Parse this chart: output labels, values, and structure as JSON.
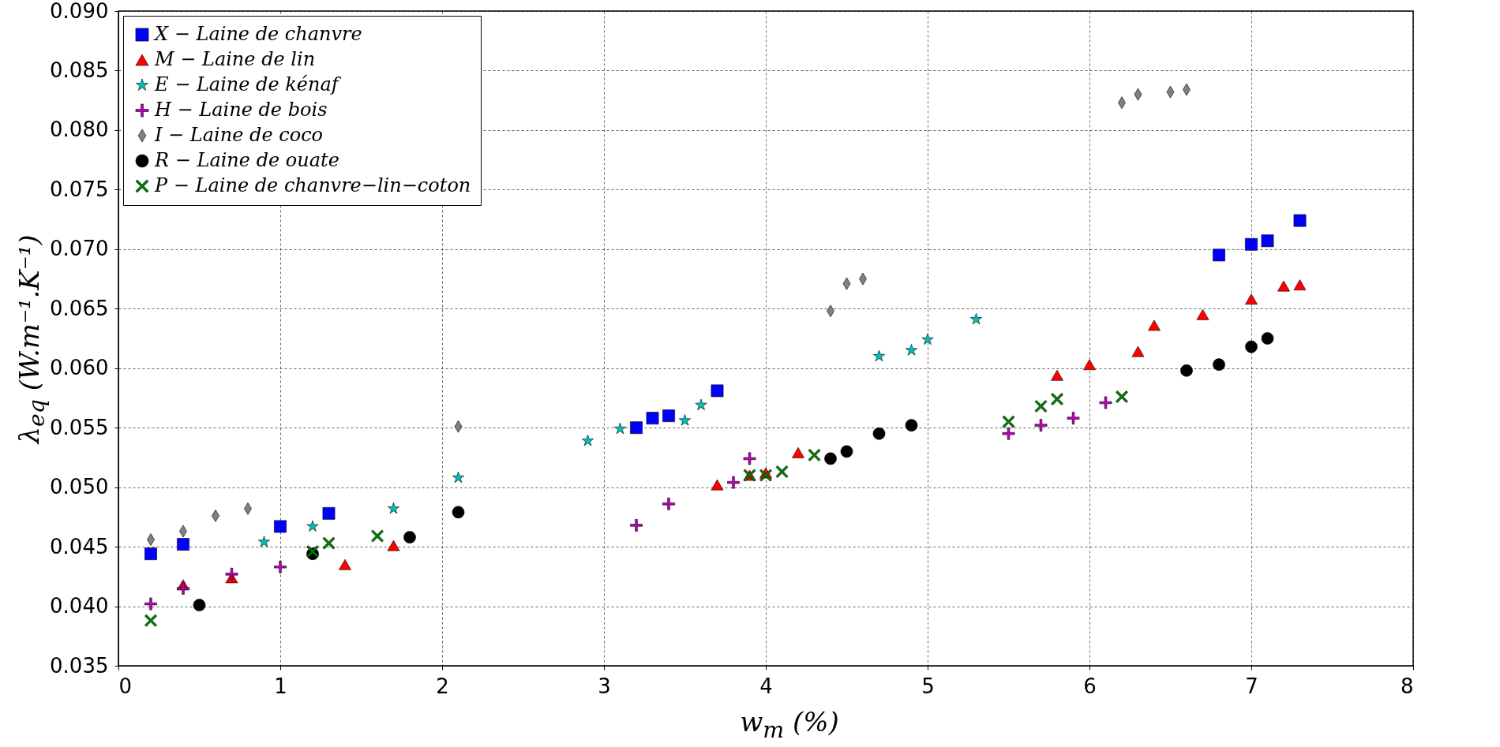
{
  "chart_data": {
    "type": "scatter",
    "xlabel": "w$_{m}$ (%)",
    "ylabel": "λ$_{eq}$ (W.m⁻¹.K⁻¹)",
    "xlim": [
      0,
      8
    ],
    "ylim": [
      0.035,
      0.09
    ],
    "xticks": [
      0,
      1,
      2,
      3,
      4,
      5,
      6,
      7,
      8
    ],
    "yticks": [
      0.035,
      {
        "value": 0.04,
        "label": "0.040"
      },
      0.045,
      {
        "value": 0.05,
        "label": "0.050"
      },
      0.055,
      {
        "value": 0.06,
        "label": "0.060"
      },
      0.065,
      {
        "value": 0.07,
        "label": "0.070"
      },
      0.075,
      {
        "value": 0.08,
        "label": "0.080"
      },
      0.085,
      {
        "value": 0.09,
        "label": "0.090"
      }
    ],
    "grid": true,
    "legend": "top left",
    "series": [
      {
        "name": "X − Laine de chanvre",
        "color": "#0000ff",
        "marker": "square",
        "x": [
          0.2,
          0.4,
          1.0,
          1.3,
          3.2,
          3.3,
          3.4,
          3.7,
          6.8,
          7.0,
          7.1,
          7.3
        ],
        "values": [
          0.0444,
          0.0452,
          0.0467,
          0.0478,
          0.055,
          0.0558,
          0.056,
          0.0581,
          0.0695,
          0.0704,
          0.0707,
          0.0724
        ]
      },
      {
        "name": "M − Laine de lin",
        "color": "#ff0000",
        "marker": "triangle",
        "x": [
          0.4,
          0.7,
          1.4,
          1.7,
          3.7,
          3.9,
          4.0,
          4.2,
          5.8,
          6.0,
          6.3,
          6.4,
          6.7,
          7.0,
          7.2,
          7.3
        ],
        "values": [
          0.0418,
          0.0424,
          0.0435,
          0.0451,
          0.0502,
          0.051,
          0.0512,
          0.0529,
          0.0594,
          0.0603,
          0.0614,
          0.0636,
          0.0645,
          0.0658,
          0.0669,
          0.067
        ]
      },
      {
        "name": "E − Laine de kénaf",
        "color": "#00bfbf",
        "marker": "star",
        "x": [
          0.9,
          1.2,
          1.7,
          2.1,
          2.9,
          3.1,
          3.5,
          3.6,
          4.7,
          4.9,
          5.0,
          5.3
        ],
        "values": [
          0.0454,
          0.0467,
          0.0482,
          0.0508,
          0.0539,
          0.0549,
          0.0556,
          0.0569,
          0.061,
          0.0615,
          0.0624,
          0.0641
        ]
      },
      {
        "name": "H − Laine de bois",
        "color": "#bf00bf",
        "marker": "plus",
        "x": [
          0.2,
          0.4,
          0.7,
          1.0,
          3.2,
          3.4,
          3.8,
          3.9,
          5.5,
          5.7,
          5.9,
          6.1
        ],
        "values": [
          0.0402,
          0.0415,
          0.0427,
          0.0433,
          0.0468,
          0.0486,
          0.0504,
          0.0524,
          0.0545,
          0.0552,
          0.0558,
          0.0571
        ]
      },
      {
        "name": "I − Laine de coco",
        "color": "#808080",
        "marker": "diamond",
        "x": [
          0.2,
          0.4,
          0.6,
          0.8,
          2.1,
          4.4,
          4.5,
          4.6,
          6.2,
          6.3,
          6.5,
          6.6
        ],
        "values": [
          0.0456,
          0.0463,
          0.0476,
          0.0482,
          0.0551,
          0.0648,
          0.0671,
          0.0675,
          0.0823,
          0.083,
          0.0832,
          0.0834
        ]
      },
      {
        "name": "R − Laine de ouate",
        "color": "#000000",
        "marker": "circle",
        "x": [
          0.5,
          1.2,
          1.8,
          2.1,
          4.4,
          4.5,
          4.7,
          4.9,
          6.6,
          6.8,
          7.0,
          7.1
        ],
        "values": [
          0.0401,
          0.0444,
          0.0458,
          0.0479,
          0.0524,
          0.053,
          0.0545,
          0.0552,
          0.0598,
          0.0603,
          0.0618,
          0.0625
        ]
      },
      {
        "name": "P − Laine de chanvre−lin−coton",
        "color": "#008000",
        "marker": "cross",
        "x": [
          0.2,
          1.2,
          1.3,
          1.6,
          3.9,
          4.0,
          4.1,
          4.3,
          5.5,
          5.7,
          5.8,
          6.2
        ],
        "values": [
          0.0388,
          0.0446,
          0.0453,
          0.0459,
          0.051,
          0.051,
          0.0513,
          0.0527,
          0.0555,
          0.0568,
          0.0574,
          0.0576
        ]
      }
    ]
  }
}
